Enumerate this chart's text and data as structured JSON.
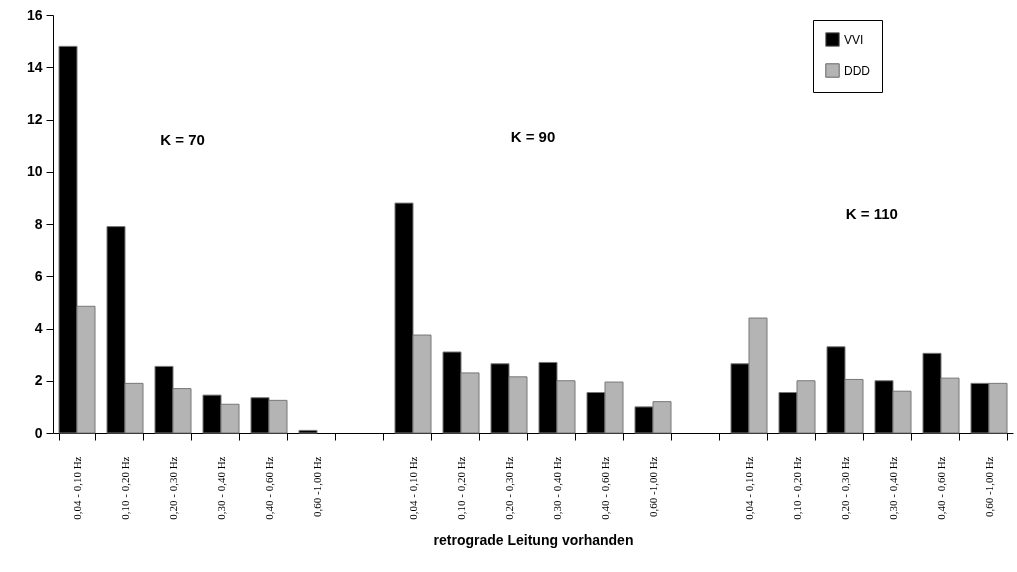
{
  "chart_data": {
    "type": "bar",
    "xlabel": "retrograde Leitung vorhanden",
    "categories": [
      "0,04 - 0,10 Hz",
      "0,10 - 0,20 Hz",
      "0,20 - 0,30 Hz",
      "0,30 - 0,40 Hz",
      "0,40 - 0,60 Hz",
      "0,60 -1,00 Hz",
      null,
      "0,04 - 0,10 Hz",
      "0,10 - 0,20 Hz",
      "0,20 - 0,30 Hz",
      "0,30 - 0,40 Hz",
      "0,40 - 0,60 Hz",
      "0,60 -1,00 Hz",
      null,
      "0,04 - 0,10 Hz",
      "0,10 - 0,20 Hz",
      "0,20 - 0,30 Hz",
      "0,30 - 0,40 Hz",
      "0,40 - 0,60 Hz",
      "0,60 -1,00 Hz"
    ],
    "series": [
      {
        "name": "VVI",
        "color": "#000000",
        "values": [
          14.8,
          7.9,
          2.55,
          1.45,
          1.35,
          0.1,
          null,
          8.8,
          3.1,
          2.65,
          2.7,
          1.55,
          1.0,
          null,
          2.65,
          1.55,
          3.3,
          2.0,
          3.05,
          1.9
        ]
      },
      {
        "name": "DDD",
        "color": "#b4b4b4",
        "values": [
          4.85,
          1.9,
          1.7,
          1.1,
          1.25,
          null,
          null,
          3.75,
          2.3,
          2.15,
          2.0,
          1.95,
          1.2,
          null,
          4.4,
          2.0,
          2.05,
          1.6,
          2.1,
          1.9
        ]
      }
    ],
    "ylim": [
      0,
      16
    ],
    "yticks": [
      0,
      2,
      4,
      6,
      8,
      10,
      12,
      14,
      16
    ],
    "grid": false,
    "legend": "top right",
    "annotations": [
      "K =  70",
      "K =  90",
      "K =  110"
    ]
  }
}
